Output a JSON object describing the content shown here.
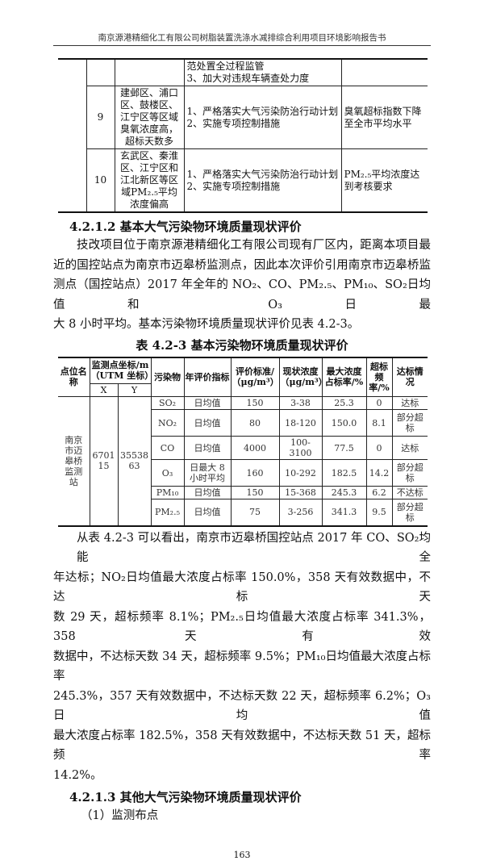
{
  "header": {
    "title": "南京源港精细化工有限公司树脂装置洗涤水减排综合利用项目环境影响报告书"
  },
  "table1": {
    "rows": [
      {
        "no": "",
        "area": "",
        "measures": [
          "范处置全过程监管",
          "3、加大对违规车辆查处力度"
        ],
        "target": ""
      },
      {
        "no": "9",
        "area": "建邺区、浦口区、鼓楼区、江宁区等区域臭氧浓度高，超标天数多",
        "measures": [
          "1、严格落实大气污染防治行动计划",
          "2、实施专项控制措施"
        ],
        "target": "臭氧超标指数下降至全市平均水平"
      },
      {
        "no": "10",
        "area": "玄武区、秦淮区、江宁区和江北新区等区域PM₂.₅平均浓度偏高",
        "measures": [
          "1、严格落实大气污染防治行动计划",
          "2、实施专项控制措施"
        ],
        "target": "PM₂.₅平均浓度达到考核要求"
      }
    ]
  },
  "section1": {
    "heading": "4.2.1.2 基本大气污染物环境质量现状评价",
    "lines": [
      "技改项目位于南京源港精细化工有限公司现有厂区内，距离本项目最",
      "近的国控站点为南京市迈皋桥监测点，因此本次评价引用南京市迈皋桥监",
      "测点（国控站点）2017 年全年的 NO₂、CO、PM₂.₅、PM₁₀、SO₂日均值和 O₃日最",
      "大 8 小时平均。基本污染物环境质量现状评价见表 4.2-3。"
    ]
  },
  "table2": {
    "caption": "表 4.2-3   基本污染物环境质量现状评价",
    "headers": {
      "site": "点位名称",
      "coord": "监测点坐标/m（UTM 坐标）",
      "x": "X",
      "y": "Y",
      "pollutant": "污染物",
      "index": "年评价指标",
      "standard": "评价标准/（μg/m³）",
      "conc": "现状浓度（μg/m³）",
      "maxratio": "最大浓度占标率/%",
      "exceed": "超标频率/%",
      "status": "达标情况"
    },
    "site": "南京市迈皋桥监测站",
    "x": "670115",
    "y": "3553863",
    "rows": [
      {
        "pollutant": "SO₂",
        "index": "日均值",
        "standard": "150",
        "conc": "3-38",
        "maxratio": "25.3",
        "exceed": "0",
        "status": "达标"
      },
      {
        "pollutant": "NO₂",
        "index": "日均值",
        "standard": "80",
        "conc": "18-120",
        "maxratio": "150.0",
        "exceed": "8.1",
        "status": "部分超标"
      },
      {
        "pollutant": "CO",
        "index": "日均值",
        "standard": "4000",
        "conc": "100-3100",
        "maxratio": "77.5",
        "exceed": "0",
        "status": "达标"
      },
      {
        "pollutant": "O₃",
        "index": "日最大 8 小时平均",
        "standard": "160",
        "conc": "10-292",
        "maxratio": "182.5",
        "exceed": "14.2",
        "status": "部分超标"
      },
      {
        "pollutant": "PM₁₀",
        "index": "日均值",
        "standard": "150",
        "conc": "15-368",
        "maxratio": "245.3",
        "exceed": "6.2",
        "status": "不达标"
      },
      {
        "pollutant": "PM₂.₅",
        "index": "日均值",
        "standard": "75",
        "conc": "3-256",
        "maxratio": "341.3",
        "exceed": "9.5",
        "status": "部分超标"
      }
    ]
  },
  "para2": {
    "lines": [
      "从表 4.2-3 可以看出，南京市迈皋桥国控站点 2017 年 CO、SO₂均能全",
      "年达标；NO₂日均值最大浓度占标率 150.0%，358 天有效数据中，不达标天",
      "数 29 天，超标频率 8.1%；PM₂.₅日均值最大浓度占标率 341.3%，358 天有效",
      "数据中，不达标天数 34 天，超标频率 9.5%；PM₁₀日均值最大浓度占标率",
      "245.3%，357 天有效数据中，不达标天数 22 天，超标频率 6.2%；O₃日均值",
      "最大浓度占标率 182.5%，358 天有效数据中，不达标天数 51 天，超标频率",
      "14.2%。"
    ]
  },
  "section2": {
    "heading": "4.2.1.3 其他大气污染物环境质量现状评价",
    "sub": "（1）监测布点"
  },
  "page_number": "163"
}
